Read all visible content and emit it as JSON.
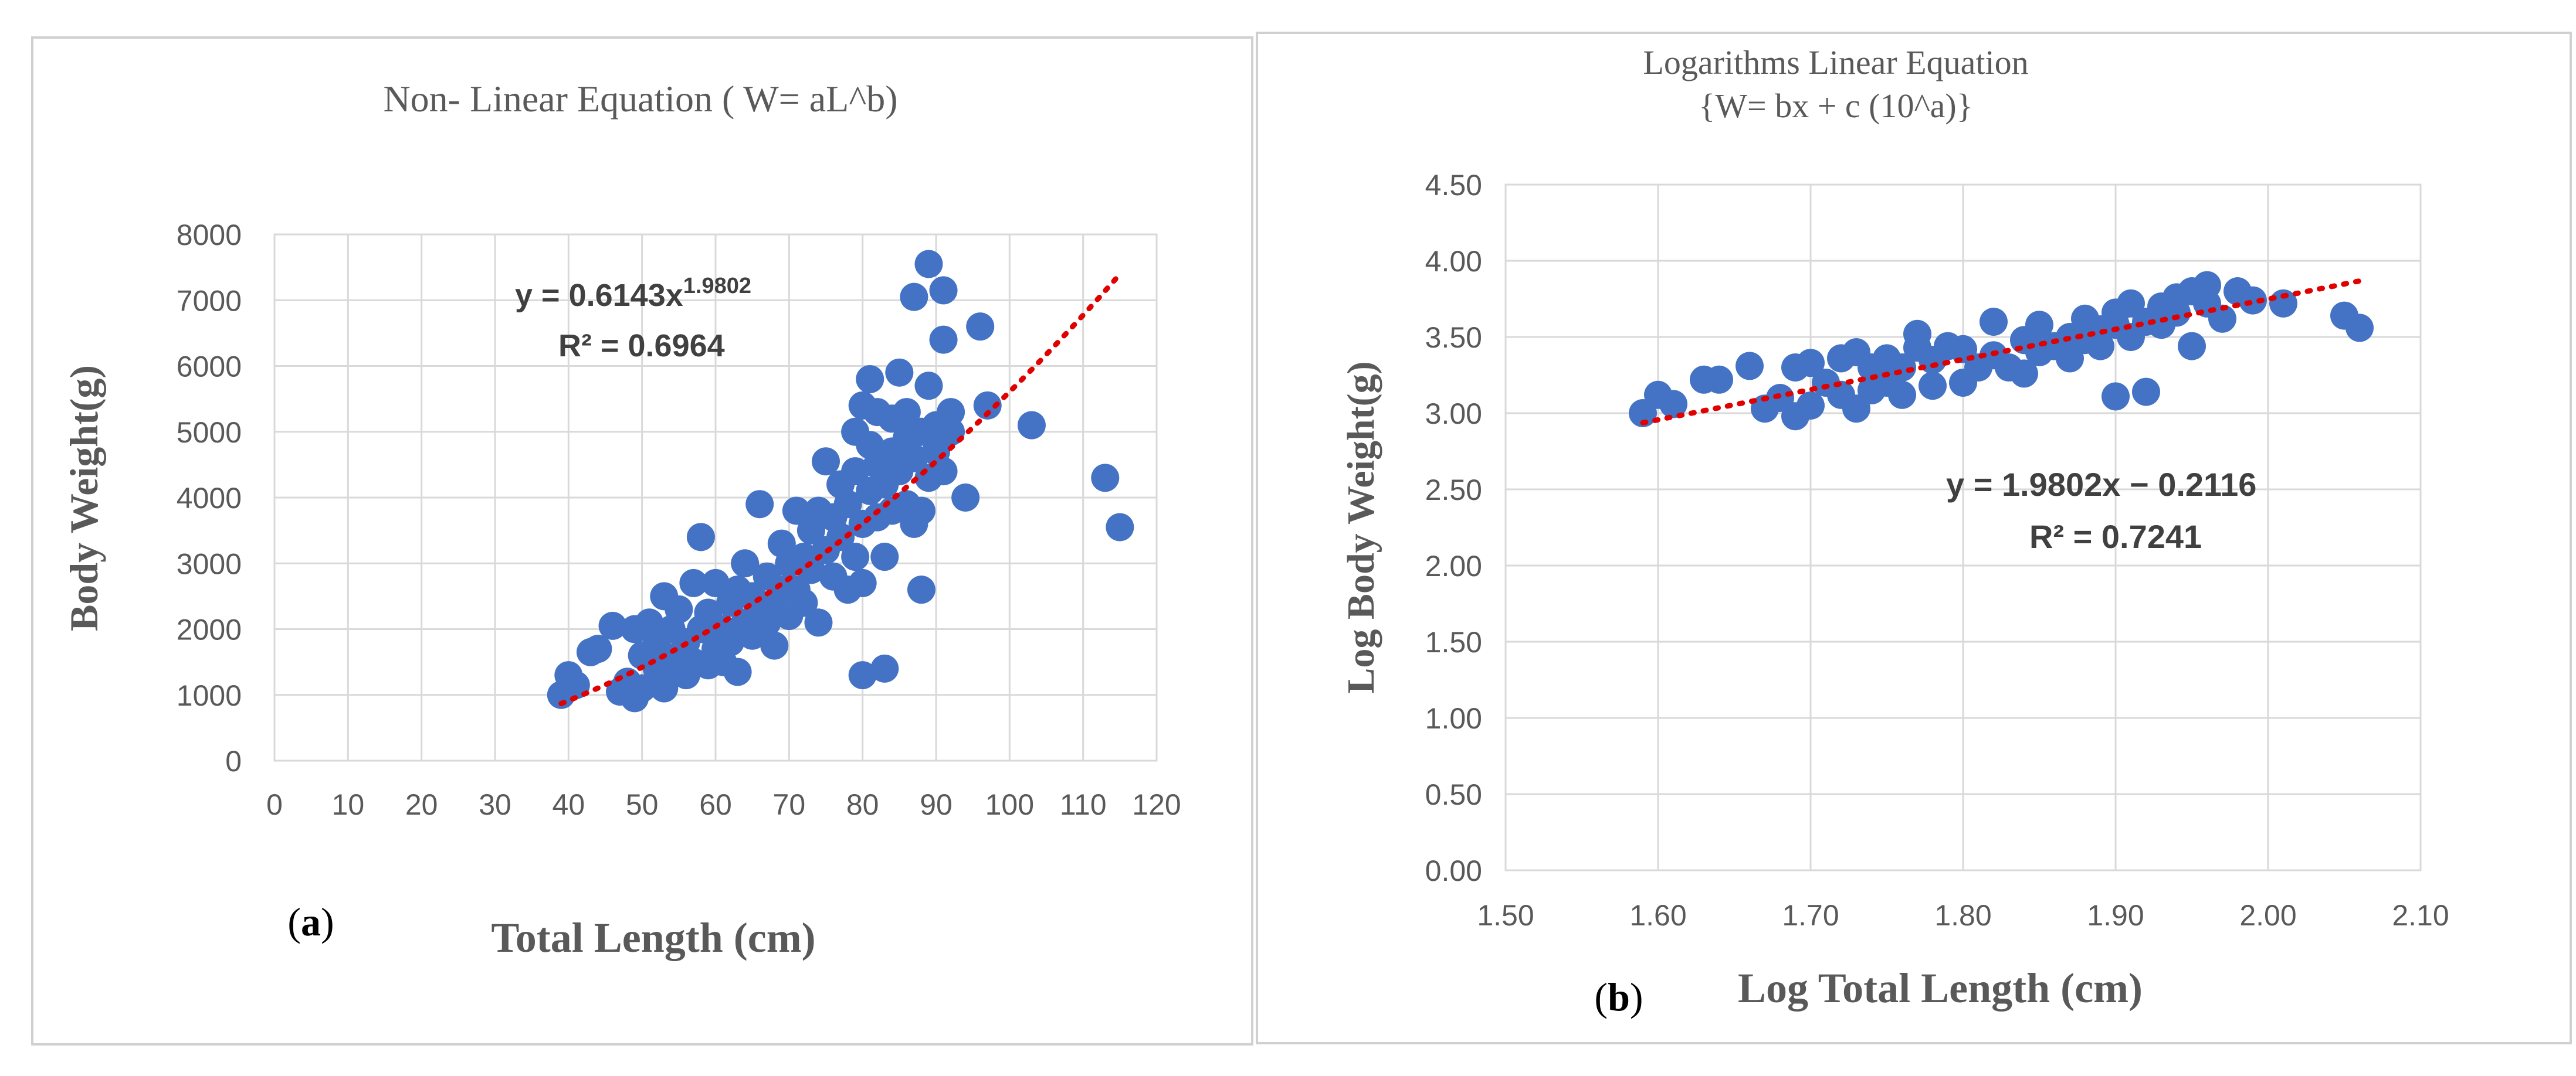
{
  "chart_data": [
    {
      "type": "scatter",
      "panel_label": "a",
      "title": "Non- Linear Equation ( W= aL^b)",
      "xlabel": "Total Length (cm)",
      "ylabel": "Body Weight(g)",
      "xlim": [
        0,
        120
      ],
      "ylim": [
        0,
        8000
      ],
      "x_ticks": [
        0,
        10,
        20,
        30,
        40,
        50,
        60,
        70,
        80,
        90,
        100,
        110,
        120
      ],
      "x_tick_labels": [
        "0",
        "10",
        "20",
        "30",
        "40",
        "50",
        "60",
        "70",
        "80",
        "90",
        "100",
        "110",
        "120"
      ],
      "y_ticks": [
        0,
        1000,
        2000,
        3000,
        4000,
        5000,
        6000,
        7000,
        8000
      ],
      "y_tick_labels": [
        "0",
        "1000",
        "2000",
        "3000",
        "4000",
        "5000",
        "6000",
        "7000",
        "8000"
      ],
      "grid": true,
      "marker_color": "#4472C4",
      "trend_color": "#E00000",
      "trendline": {
        "kind": "power",
        "a": 0.6143,
        "b": 1.9802,
        "x_range": [
          39,
          115
        ]
      },
      "equation_prefix": "y = 0.6143x",
      "equation_exponent": "1.9802",
      "r2_text": "R² = 0.6964",
      "points": [
        [
          39,
          1000
        ],
        [
          40,
          1300
        ],
        [
          41,
          1150
        ],
        [
          43,
          1650
        ],
        [
          44,
          1700
        ],
        [
          46,
          2050
        ],
        [
          47,
          1050
        ],
        [
          48,
          1200
        ],
        [
          49,
          950
        ],
        [
          50,
          1100
        ],
        [
          49,
          2000
        ],
        [
          50,
          1600
        ],
        [
          51,
          2100
        ],
        [
          52,
          1400
        ],
        [
          52,
          1800
        ],
        [
          53,
          2500
        ],
        [
          53,
          1100
        ],
        [
          54,
          1400
        ],
        [
          54,
          2000
        ],
        [
          55,
          1600
        ],
        [
          55,
          2300
        ],
        [
          56,
          1300
        ],
        [
          56,
          1800
        ],
        [
          57,
          2700
        ],
        [
          57,
          1500
        ],
        [
          58,
          3400
        ],
        [
          58,
          2000
        ],
        [
          59,
          1450
        ],
        [
          59,
          2250
        ],
        [
          60,
          1700
        ],
        [
          60,
          2700
        ],
        [
          61,
          1500
        ],
        [
          61,
          2000
        ],
        [
          62,
          2400
        ],
        [
          62,
          1800
        ],
        [
          63,
          2600
        ],
        [
          63,
          1350
        ],
        [
          64,
          3000
        ],
        [
          64,
          2100
        ],
        [
          65,
          1900
        ],
        [
          65,
          2500
        ],
        [
          66,
          2300
        ],
        [
          66,
          3900
        ],
        [
          67,
          2100
        ],
        [
          67,
          2800
        ],
        [
          68,
          1750
        ],
        [
          68,
          2400
        ],
        [
          69,
          3300
        ],
        [
          69,
          2600
        ],
        [
          70,
          2200
        ],
        [
          70,
          3000
        ],
        [
          71,
          2600
        ],
        [
          71,
          3800
        ],
        [
          72,
          3100
        ],
        [
          72,
          2400
        ],
        [
          73,
          3500
        ],
        [
          73,
          2900
        ],
        [
          74,
          2100
        ],
        [
          74,
          3800
        ],
        [
          75,
          4550
        ],
        [
          75,
          3200
        ],
        [
          76,
          2800
        ],
        [
          76,
          3700
        ],
        [
          77,
          4200
        ],
        [
          77,
          3400
        ],
        [
          78,
          2600
        ],
        [
          78,
          3900
        ],
        [
          79,
          4400
        ],
        [
          79,
          3100
        ],
        [
          79,
          5000
        ],
        [
          80,
          1300
        ],
        [
          80,
          2700
        ],
        [
          80,
          5400
        ],
        [
          80,
          3600
        ],
        [
          81,
          4800
        ],
        [
          81,
          5800
        ],
        [
          81,
          4100
        ],
        [
          82,
          3700
        ],
        [
          82,
          5300
        ],
        [
          82,
          4500
        ],
        [
          83,
          3100
        ],
        [
          83,
          1400
        ],
        [
          83,
          4200
        ],
        [
          84,
          5200
        ],
        [
          84,
          3800
        ],
        [
          84,
          4700
        ],
        [
          85,
          5900
        ],
        [
          85,
          4400
        ],
        [
          86,
          3900
        ],
        [
          86,
          5300
        ],
        [
          86,
          4900
        ],
        [
          87,
          7050
        ],
        [
          87,
          4600
        ],
        [
          87,
          3600
        ],
        [
          88,
          2600
        ],
        [
          88,
          5000
        ],
        [
          88,
          3800
        ],
        [
          89,
          7550
        ],
        [
          89,
          5700
        ],
        [
          89,
          4300
        ],
        [
          90,
          5100
        ],
        [
          90,
          4700
        ],
        [
          91,
          6400
        ],
        [
          91,
          4400
        ],
        [
          91,
          7150
        ],
        [
          92,
          5300
        ],
        [
          92,
          5000
        ],
        [
          94,
          4000
        ],
        [
          96,
          6600
        ],
        [
          97,
          5400
        ],
        [
          103,
          5100
        ],
        [
          113,
          4300
        ],
        [
          115,
          3550
        ]
      ]
    },
    {
      "type": "scatter",
      "panel_label": "b",
      "title_line1": "Logarithms Linear Equation",
      "title_line2": "{W= bx + c (10^a)}",
      "xlabel": "Log Total Length (cm)",
      "ylabel": "Log Body Weight(g)",
      "xlim": [
        1.5,
        2.1
      ],
      "ylim": [
        0,
        4.5
      ],
      "x_ticks": [
        1.5,
        1.6,
        1.7,
        1.8,
        1.9,
        2.0,
        2.1
      ],
      "x_tick_labels": [
        "1.50",
        "1.60",
        "1.70",
        "1.80",
        "1.90",
        "2.00",
        "2.10"
      ],
      "y_ticks": [
        0,
        0.5,
        1.0,
        1.5,
        2.0,
        2.5,
        3.0,
        3.5,
        4.0,
        4.5
      ],
      "y_tick_labels": [
        "0.00",
        "0.50",
        "1.00",
        "1.50",
        "2.00",
        "2.50",
        "3.00",
        "3.50",
        "4.00",
        "4.50"
      ],
      "grid": true,
      "marker_color": "#4472C4",
      "trend_color": "#E00000",
      "trendline": {
        "kind": "linear",
        "slope": 1.9802,
        "intercept": -0.2116,
        "x_range": [
          1.59,
          2.06
        ]
      },
      "equation": "y = 1.9802x − 0.2116",
      "r2_text": "R² = 0.7241",
      "points": [
        [
          1.59,
          3.0
        ],
        [
          1.6,
          3.12
        ],
        [
          1.61,
          3.06
        ],
        [
          1.63,
          3.22
        ],
        [
          1.64,
          3.22
        ],
        [
          1.66,
          3.31
        ],
        [
          1.67,
          3.03
        ],
        [
          1.68,
          3.1
        ],
        [
          1.69,
          2.98
        ],
        [
          1.69,
          3.3
        ],
        [
          1.7,
          3.05
        ],
        [
          1.7,
          3.33
        ],
        [
          1.71,
          3.2
        ],
        [
          1.72,
          3.12
        ],
        [
          1.72,
          3.36
        ],
        [
          1.73,
          3.4
        ],
        [
          1.73,
          3.03
        ],
        [
          1.74,
          3.15
        ],
        [
          1.74,
          3.3
        ],
        [
          1.75,
          3.2
        ],
        [
          1.75,
          3.36
        ],
        [
          1.76,
          3.12
        ],
        [
          1.76,
          3.3
        ],
        [
          1.77,
          3.43
        ],
        [
          1.77,
          3.52
        ],
        [
          1.78,
          3.18
        ],
        [
          1.78,
          3.35
        ],
        [
          1.79,
          3.44
        ],
        [
          1.8,
          3.2
        ],
        [
          1.8,
          3.42
        ],
        [
          1.81,
          3.3
        ],
        [
          1.82,
          3.38
        ],
        [
          1.82,
          3.6
        ],
        [
          1.83,
          3.3
        ],
        [
          1.84,
          3.48
        ],
        [
          1.84,
          3.26
        ],
        [
          1.85,
          3.4
        ],
        [
          1.85,
          3.58
        ],
        [
          1.86,
          3.44
        ],
        [
          1.87,
          3.5
        ],
        [
          1.87,
          3.36
        ],
        [
          1.88,
          3.62
        ],
        [
          1.88,
          3.48
        ],
        [
          1.89,
          3.55
        ],
        [
          1.89,
          3.44
        ],
        [
          1.9,
          3.58
        ],
        [
          1.9,
          3.11
        ],
        [
          1.9,
          3.66
        ],
        [
          1.91,
          3.5
        ],
        [
          1.91,
          3.72
        ],
        [
          1.92,
          3.6
        ],
        [
          1.92,
          3.14
        ],
        [
          1.93,
          3.7
        ],
        [
          1.93,
          3.58
        ],
        [
          1.94,
          3.76
        ],
        [
          1.94,
          3.66
        ],
        [
          1.95,
          3.8
        ],
        [
          1.95,
          3.44
        ],
        [
          1.96,
          3.72
        ],
        [
          1.96,
          3.84
        ],
        [
          1.97,
          3.62
        ],
        [
          1.98,
          3.8
        ],
        [
          1.99,
          3.74
        ],
        [
          2.01,
          3.72
        ],
        [
          2.05,
          3.64
        ],
        [
          2.06,
          3.56
        ]
      ]
    }
  ]
}
